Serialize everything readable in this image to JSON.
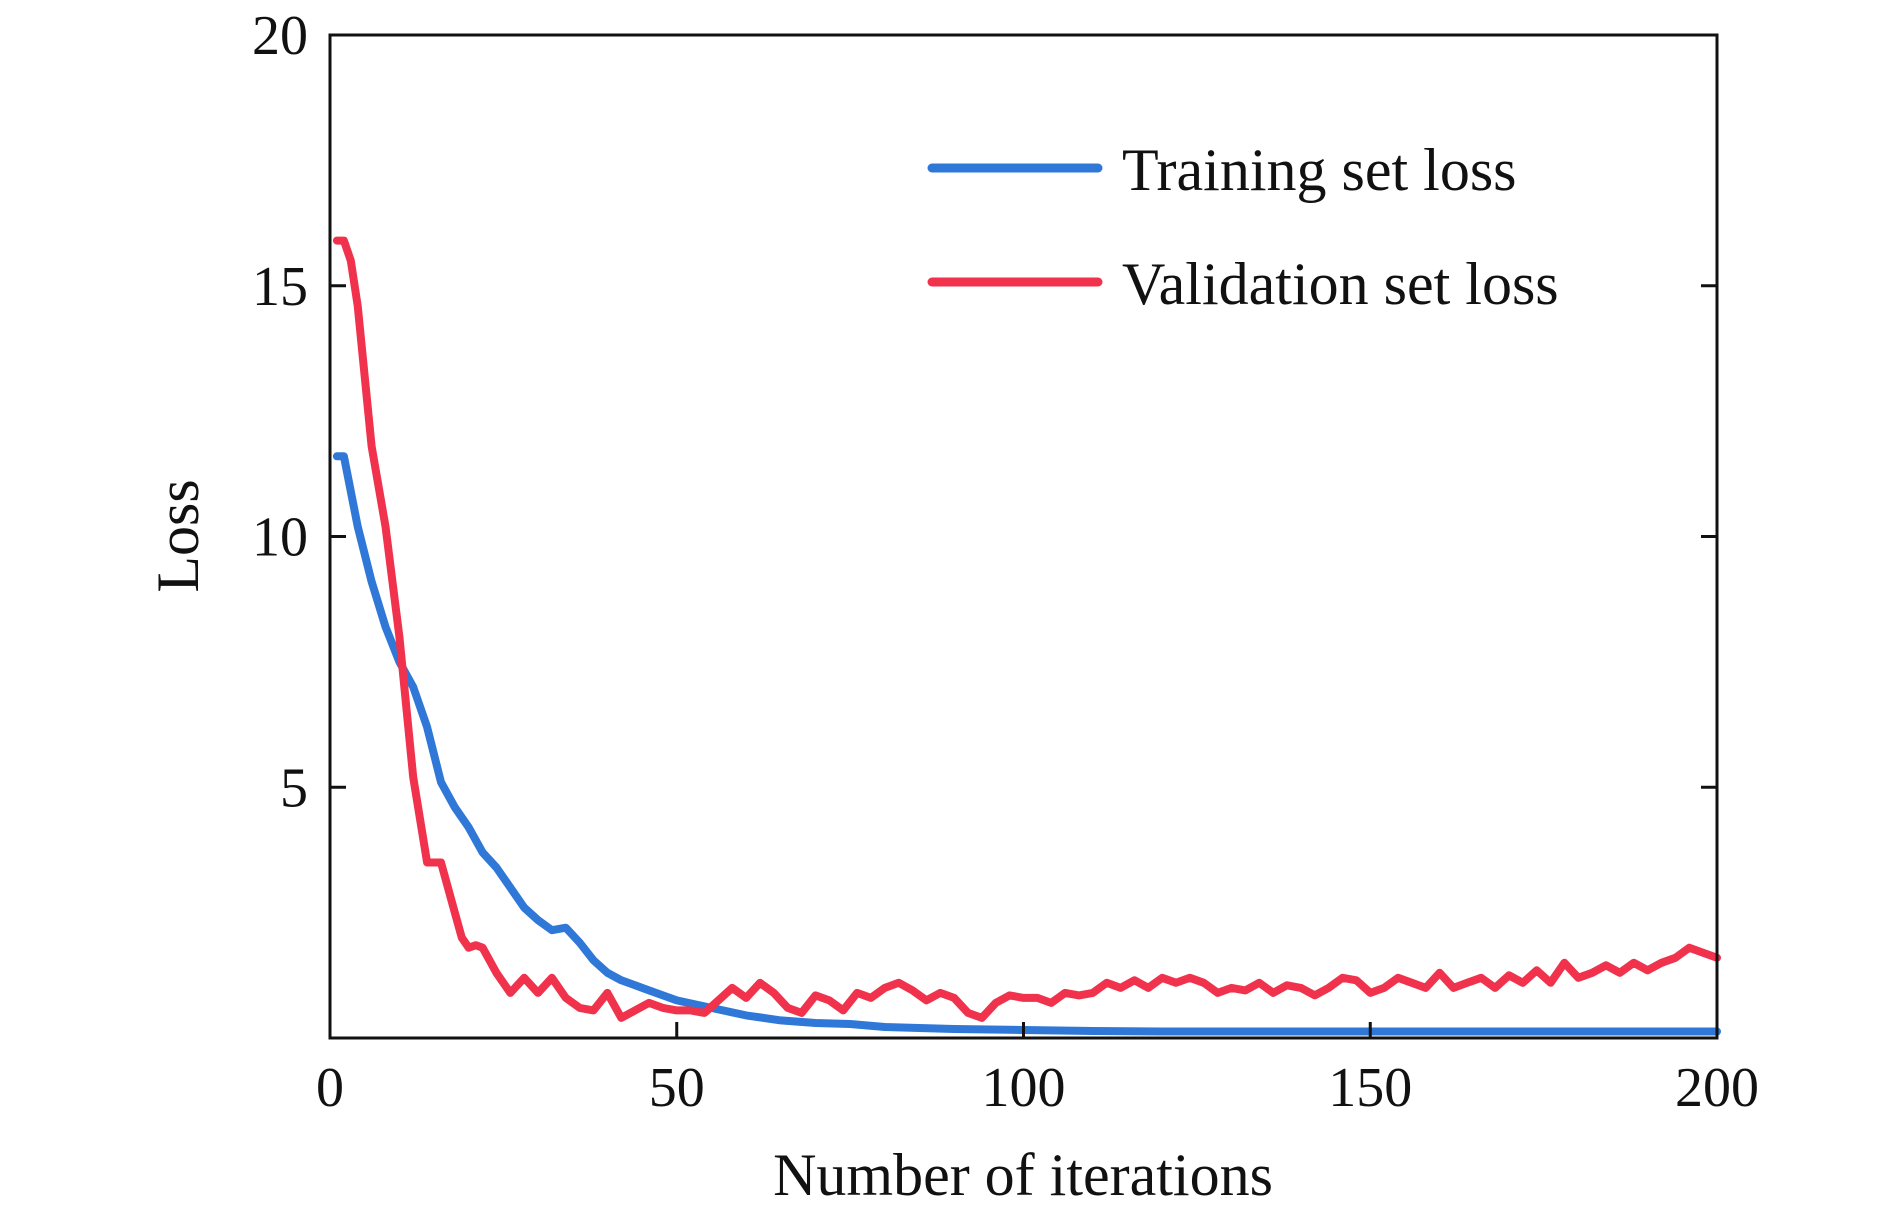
{
  "chart_data": {
    "type": "line",
    "title": "",
    "xlabel": "Number of iterations",
    "ylabel": "Loss",
    "xlim": [
      0,
      200
    ],
    "ylim": [
      0,
      20
    ],
    "xticks": [
      0,
      50,
      100,
      150,
      200
    ],
    "yticks": [
      5,
      10,
      15,
      20
    ],
    "xtick_labels": [
      "0",
      "50",
      "100",
      "150",
      "200"
    ],
    "ytick_labels": [
      "5",
      "10",
      "15",
      "20"
    ],
    "grid": false,
    "legend_position": "top-right",
    "series": [
      {
        "name": "Training set loss",
        "color": "#2f78d8",
        "x": [
          1,
          2,
          4,
          6,
          8,
          10,
          12,
          14,
          16,
          18,
          20,
          22,
          24,
          26,
          28,
          30,
          32,
          34,
          36,
          38,
          40,
          42,
          44,
          46,
          48,
          50,
          55,
          60,
          65,
          70,
          75,
          80,
          90,
          100,
          110,
          120,
          130,
          140,
          150,
          160,
          170,
          180,
          190,
          200
        ],
        "y": [
          11.6,
          11.6,
          10.2,
          9.1,
          8.2,
          7.5,
          7.0,
          6.2,
          5.1,
          4.6,
          4.2,
          3.7,
          3.4,
          3.0,
          2.6,
          2.35,
          2.15,
          2.2,
          1.9,
          1.55,
          1.3,
          1.15,
          1.05,
          0.95,
          0.85,
          0.75,
          0.6,
          0.45,
          0.35,
          0.3,
          0.28,
          0.22,
          0.18,
          0.16,
          0.14,
          0.13,
          0.13,
          0.13,
          0.13,
          0.13,
          0.13,
          0.13,
          0.13,
          0.13
        ]
      },
      {
        "name": "Validation set loss",
        "color": "#f0324c",
        "x": [
          1,
          2,
          3,
          4,
          6,
          8,
          10,
          12,
          14,
          16,
          18,
          19,
          20,
          21,
          22,
          24,
          26,
          28,
          30,
          32,
          34,
          36,
          38,
          40,
          42,
          44,
          46,
          48,
          50,
          52,
          54,
          56,
          58,
          60,
          62,
          64,
          66,
          68,
          70,
          72,
          74,
          76,
          78,
          80,
          82,
          84,
          86,
          88,
          90,
          92,
          94,
          96,
          98,
          100,
          102,
          104,
          106,
          108,
          110,
          112,
          114,
          116,
          118,
          120,
          122,
          124,
          126,
          128,
          130,
          132,
          134,
          136,
          138,
          140,
          142,
          144,
          146,
          148,
          150,
          152,
          154,
          156,
          158,
          160,
          162,
          164,
          166,
          168,
          170,
          172,
          174,
          176,
          178,
          180,
          182,
          184,
          186,
          188,
          190,
          192,
          194,
          196,
          198,
          200
        ],
        "y": [
          15.9,
          15.9,
          15.5,
          14.6,
          11.8,
          10.2,
          8.0,
          5.2,
          3.5,
          3.5,
          2.5,
          2.0,
          1.8,
          1.85,
          1.8,
          1.3,
          0.9,
          1.2,
          0.9,
          1.2,
          0.8,
          0.6,
          0.55,
          0.9,
          0.4,
          0.55,
          0.7,
          0.6,
          0.55,
          0.55,
          0.5,
          0.75,
          1.0,
          0.8,
          1.1,
          0.9,
          0.6,
          0.5,
          0.85,
          0.75,
          0.55,
          0.9,
          0.8,
          1.0,
          1.1,
          0.95,
          0.75,
          0.9,
          0.8,
          0.5,
          0.4,
          0.7,
          0.85,
          0.8,
          0.8,
          0.7,
          0.9,
          0.85,
          0.9,
          1.1,
          1.0,
          1.15,
          1.0,
          1.2,
          1.1,
          1.2,
          1.1,
          0.9,
          1.0,
          0.95,
          1.1,
          0.9,
          1.05,
          1.0,
          0.85,
          1.0,
          1.2,
          1.15,
          0.9,
          1.0,
          1.2,
          1.1,
          1.0,
          1.3,
          1.0,
          1.1,
          1.2,
          1.0,
          1.25,
          1.1,
          1.35,
          1.1,
          1.5,
          1.2,
          1.3,
          1.45,
          1.3,
          1.5,
          1.35,
          1.5,
          1.6,
          1.8,
          1.7,
          1.6
        ]
      }
    ]
  }
}
